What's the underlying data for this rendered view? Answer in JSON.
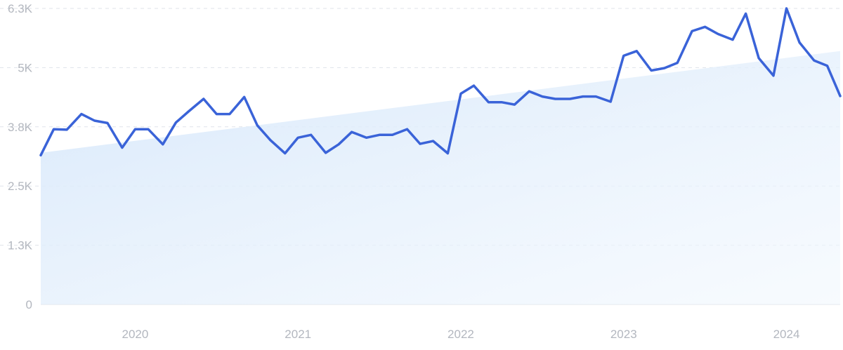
{
  "chart_data": {
    "type": "line",
    "title": "",
    "xlabel": "",
    "ylabel": "",
    "x_ticks": [
      {
        "label": "2020",
        "x": 2020.0
      },
      {
        "label": "2021",
        "x": 2021.0
      },
      {
        "label": "2022",
        "x": 2022.0
      },
      {
        "label": "2023",
        "x": 2023.0
      },
      {
        "label": "2024",
        "x": 2024.0
      }
    ],
    "y_ticks": [
      {
        "label": "0",
        "value": 0
      },
      {
        "label": "1.3K",
        "value": 1250
      },
      {
        "label": "2.5K",
        "value": 2500
      },
      {
        "label": "3.8K",
        "value": 3750
      },
      {
        "label": "5K",
        "value": 5000
      },
      {
        "label": "6.3K",
        "value": 6250
      }
    ],
    "xlim": [
      2019.42,
      2024.33
    ],
    "ylim": [
      0,
      6250
    ],
    "grid": true,
    "series": [
      {
        "color": "#3a63d8",
        "x": [
          2019.42,
          2019.5,
          2019.58,
          2019.67,
          2019.75,
          2019.83,
          2019.92,
          2020.0,
          2020.08,
          2020.17,
          2020.25,
          2020.33,
          2020.42,
          2020.5,
          2020.58,
          2020.67,
          2020.75,
          2020.83,
          2020.92,
          2021.0,
          2021.08,
          2021.17,
          2021.25,
          2021.33,
          2021.42,
          2021.5,
          2021.58,
          2021.67,
          2021.75,
          2021.83,
          2021.92,
          2022.0,
          2022.08,
          2022.17,
          2022.25,
          2022.33,
          2022.42,
          2022.5,
          2022.58,
          2022.67,
          2022.75,
          2022.83,
          2022.92,
          2023.0,
          2023.08,
          2023.17,
          2023.25,
          2023.33,
          2023.42,
          2023.5,
          2023.58,
          2023.67,
          2023.75,
          2023.83,
          2023.92,
          2024.0,
          2024.08,
          2024.17,
          2024.25,
          2024.33
        ],
        "y": [
          3150,
          3700,
          3690,
          4020,
          3880,
          3830,
          3310,
          3700,
          3700,
          3380,
          3840,
          4080,
          4340,
          4020,
          4020,
          4380,
          3780,
          3470,
          3190,
          3520,
          3580,
          3200,
          3380,
          3640,
          3520,
          3580,
          3580,
          3700,
          3390,
          3450,
          3190,
          4450,
          4620,
          4270,
          4270,
          4220,
          4500,
          4390,
          4340,
          4340,
          4390,
          4390,
          4280,
          5250,
          5350,
          4940,
          4990,
          5100,
          5770,
          5860,
          5710,
          5590,
          6140,
          5200,
          4830,
          6250,
          5530,
          5150,
          5040,
          4400
        ]
      }
    ],
    "trend": {
      "color": "#d8e8f8",
      "x": [
        2019.42,
        2024.33
      ],
      "y": [
        3200,
        5350
      ]
    }
  }
}
